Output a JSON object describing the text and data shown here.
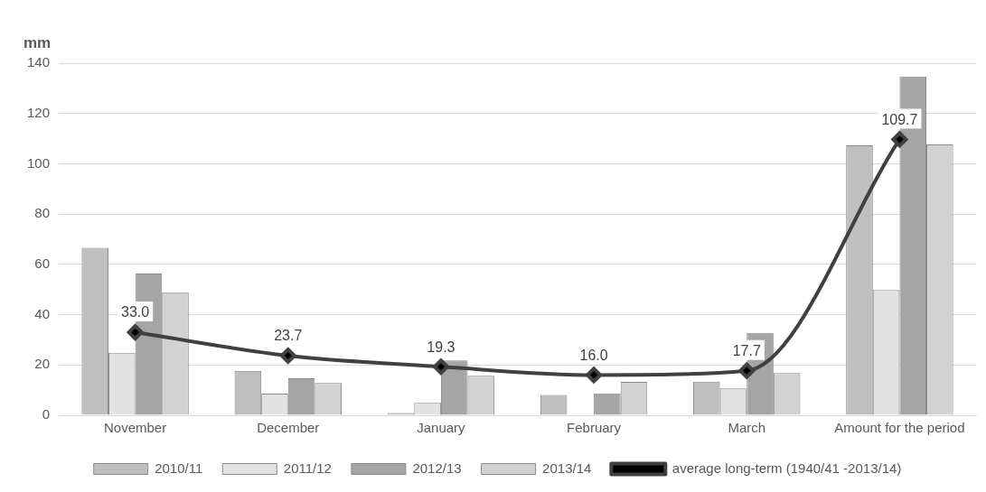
{
  "chart_data": {
    "type": "bar",
    "ylabel": "mm",
    "categories": [
      "November",
      "December",
      "January",
      "February",
      "March",
      "Amount for the period"
    ],
    "ylim": [
      0,
      140
    ],
    "yticks": [
      0,
      20,
      40,
      60,
      80,
      100,
      120,
      140
    ],
    "grid": "y",
    "legend": "bottom",
    "series": [
      {
        "name": "2010/11",
        "color": "#bfbfbf",
        "values": [
          66.6,
          17.7,
          0.9,
          8.1,
          13.4,
          107.3
        ]
      },
      {
        "name": "2011/12",
        "color": "#e2e2e2",
        "values": [
          24.9,
          8.6,
          4.9,
          0,
          10.7,
          49.8
        ]
      },
      {
        "name": "2012/13",
        "color": "#a5a5a5",
        "values": [
          56.4,
          14.7,
          21.8,
          8.7,
          32.8,
          134.7
        ]
      },
      {
        "name": "2013/14",
        "color": "#d2d2d2",
        "values": [
          48.9,
          12.8,
          15.7,
          13.3,
          16.8,
          107.7
        ]
      },
      {
        "name": "average long-term (1940/41 -2013/14)",
        "type": "line",
        "color": "#404040",
        "marker": "diamond",
        "values": [
          33.0,
          23.7,
          19.3,
          16.0,
          17.7,
          109.7
        ],
        "value_labels": [
          "33.0",
          "23.7",
          "19.3",
          "16.0",
          "17.7",
          "109.7"
        ]
      }
    ]
  }
}
